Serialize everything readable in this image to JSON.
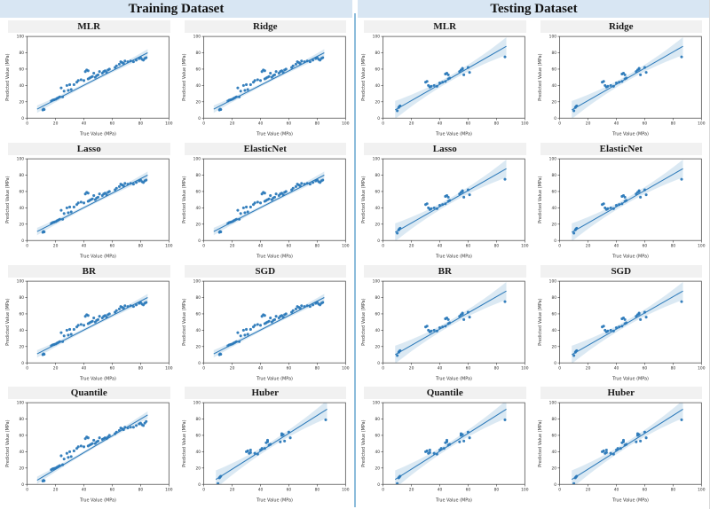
{
  "headers": {
    "training": "Training Dataset",
    "testing": "Testing Dataset"
  },
  "axes": {
    "xlabel": "True Value (MPa)",
    "ylabel": "Predicted Value (MPa)",
    "xlim": [
      0,
      100
    ],
    "ylim": [
      0,
      100
    ],
    "ticks": [
      0,
      20,
      40,
      60,
      80,
      100
    ]
  },
  "colors": {
    "accent": "#2b79b9",
    "band_fill": "#1f77b4",
    "header_bg": "#d8e6f3",
    "strip_bg": "#f1f1f1",
    "divider": "#8cbcdb",
    "plot_border": "#3f3f3f"
  },
  "chart_data": {
    "type": "scatter",
    "title": "Regression model predictions vs true values, training and testing datasets",
    "xlabel": "True Value (MPa)",
    "ylabel": "Predicted Value (MPa)",
    "xlim": [
      0,
      100
    ],
    "ylim": [
      0,
      100
    ],
    "grid": false,
    "legend": "none",
    "clouds": {
      "train_a": [
        [
          11,
          10
        ],
        [
          11.5,
          11
        ],
        [
          12,
          10.5
        ],
        [
          17,
          21
        ],
        [
          18,
          22
        ],
        [
          19,
          22.5
        ],
        [
          20,
          23
        ],
        [
          21,
          24
        ],
        [
          22,
          25
        ],
        [
          23,
          26
        ],
        [
          25,
          26
        ],
        [
          24,
          37
        ],
        [
          26,
          33
        ],
        [
          28,
          40
        ],
        [
          29,
          34
        ],
        [
          30,
          41
        ],
        [
          31,
          35
        ],
        [
          33,
          41
        ],
        [
          35,
          44
        ],
        [
          36,
          46
        ],
        [
          38,
          47
        ],
        [
          40,
          46
        ],
        [
          41,
          57
        ],
        [
          42,
          59
        ],
        [
          43,
          58
        ],
        [
          43,
          48
        ],
        [
          44,
          49
        ],
        [
          45,
          50
        ],
        [
          46,
          51
        ],
        [
          47,
          55
        ],
        [
          48,
          50
        ],
        [
          49,
          52
        ],
        [
          50,
          53
        ],
        [
          51,
          57
        ],
        [
          53,
          55
        ],
        [
          54,
          57
        ],
        [
          55,
          58
        ],
        [
          56,
          56
        ],
        [
          57,
          59
        ],
        [
          58,
          60
        ],
        [
          62,
          62
        ],
        [
          63,
          64
        ],
        [
          65,
          66
        ],
        [
          66,
          69
        ],
        [
          67,
          68
        ],
        [
          68,
          67
        ],
        [
          69,
          70
        ],
        [
          71,
          69
        ],
        [
          73,
          70
        ],
        [
          75,
          69
        ],
        [
          77,
          71
        ],
        [
          79,
          73
        ],
        [
          80,
          74
        ],
        [
          81,
          72
        ],
        [
          82,
          71
        ],
        [
          83,
          73
        ],
        [
          84,
          74
        ]
      ],
      "train_q": [
        [
          11,
          4
        ],
        [
          11.5,
          5
        ],
        [
          12,
          4.5
        ],
        [
          17,
          18
        ],
        [
          18,
          19
        ],
        [
          19,
          19.5
        ],
        [
          20,
          20
        ],
        [
          21,
          21
        ],
        [
          22,
          22
        ],
        [
          23,
          23
        ],
        [
          25,
          24
        ],
        [
          24,
          35
        ],
        [
          26,
          31
        ],
        [
          28,
          38
        ],
        [
          29,
          33
        ],
        [
          30,
          40
        ],
        [
          31,
          34
        ],
        [
          33,
          41
        ],
        [
          35,
          44
        ],
        [
          36,
          46
        ],
        [
          38,
          47
        ],
        [
          40,
          46
        ],
        [
          41,
          56
        ],
        [
          42,
          58
        ],
        [
          43,
          57
        ],
        [
          43,
          47
        ],
        [
          44,
          48
        ],
        [
          45,
          49
        ],
        [
          46,
          50
        ],
        [
          47,
          54
        ],
        [
          48,
          50
        ],
        [
          49,
          52
        ],
        [
          50,
          53
        ],
        [
          51,
          57
        ],
        [
          53,
          55
        ],
        [
          54,
          56
        ],
        [
          55,
          57
        ],
        [
          56,
          56
        ],
        [
          57,
          58
        ],
        [
          58,
          60
        ],
        [
          62,
          62
        ],
        [
          63,
          64
        ],
        [
          65,
          66
        ],
        [
          66,
          69
        ],
        [
          67,
          68
        ],
        [
          68,
          67
        ],
        [
          69,
          70
        ],
        [
          71,
          69
        ],
        [
          73,
          70
        ],
        [
          75,
          70
        ],
        [
          77,
          72
        ],
        [
          79,
          74
        ],
        [
          80,
          75
        ],
        [
          81,
          73
        ],
        [
          82,
          72
        ],
        [
          83,
          75
        ],
        [
          84,
          77
        ]
      ],
      "test_a": [
        [
          10,
          9
        ],
        [
          11,
          13
        ],
        [
          11.5,
          14
        ],
        [
          12,
          15
        ],
        [
          30,
          44
        ],
        [
          31,
          45
        ],
        [
          32,
          40
        ],
        [
          33,
          38
        ],
        [
          34,
          39
        ],
        [
          36,
          40
        ],
        [
          38,
          39
        ],
        [
          40,
          43
        ],
        [
          42,
          44
        ],
        [
          44,
          45
        ],
        [
          44,
          54
        ],
        [
          45,
          55
        ],
        [
          46,
          53
        ],
        [
          46,
          48
        ],
        [
          47,
          49
        ],
        [
          54,
          57
        ],
        [
          55,
          59
        ],
        [
          56,
          60
        ],
        [
          56,
          61
        ],
        [
          57,
          53
        ],
        [
          60,
          62
        ],
        [
          61,
          56
        ],
        [
          86,
          75
        ]
      ],
      "test_b": [
        [
          10,
          1
        ],
        [
          11,
          8
        ],
        [
          11.5,
          9
        ],
        [
          12,
          10
        ],
        [
          30,
          40
        ],
        [
          31,
          41
        ],
        [
          32,
          38
        ],
        [
          33,
          39
        ],
        [
          33,
          42
        ],
        [
          36,
          38
        ],
        [
          38,
          37
        ],
        [
          40,
          42
        ],
        [
          41,
          44
        ],
        [
          43,
          44
        ],
        [
          44,
          51
        ],
        [
          45,
          52
        ],
        [
          45,
          54
        ],
        [
          46,
          48
        ],
        [
          47,
          49
        ],
        [
          54,
          52
        ],
        [
          55,
          60
        ],
        [
          55,
          62
        ],
        [
          56,
          61
        ],
        [
          57,
          53
        ],
        [
          60,
          64
        ],
        [
          61,
          57
        ],
        [
          86,
          79
        ]
      ]
    },
    "lines": {
      "train_std": {
        "x0": 7,
        "y0": 11,
        "x1": 85,
        "y1": 80
      },
      "train_q": {
        "x0": 7,
        "y0": 5,
        "x1": 85,
        "y1": 85
      },
      "test_std": {
        "x0": 8.5,
        "y0": 10,
        "x1": 87,
        "y1": 88
      },
      "test_b": {
        "x0": 8.5,
        "y0": 6,
        "x1": 87,
        "y1": 92
      }
    },
    "bands": {
      "train": {
        "mid": 1.8,
        "end": 4.5
      },
      "test": {
        "mid": 3.5,
        "end": 11
      }
    },
    "panels": [
      {
        "dataset": "training",
        "title": "MLR",
        "cloud": "train_a",
        "line": "train_std",
        "band": "train"
      },
      {
        "dataset": "training",
        "title": "Ridge",
        "cloud": "train_a",
        "line": "train_std",
        "band": "train"
      },
      {
        "dataset": "training",
        "title": "Lasso",
        "cloud": "train_a",
        "line": "train_std",
        "band": "train"
      },
      {
        "dataset": "training",
        "title": "ElasticNet",
        "cloud": "train_a",
        "line": "train_std",
        "band": "train"
      },
      {
        "dataset": "training",
        "title": "BR",
        "cloud": "train_a",
        "line": "train_std",
        "band": "train"
      },
      {
        "dataset": "training",
        "title": "SGD",
        "cloud": "train_a",
        "line": "train_std",
        "band": "train"
      },
      {
        "dataset": "training",
        "title": "Quantile",
        "cloud": "train_q",
        "line": "train_q",
        "band": "train"
      },
      {
        "dataset": "training",
        "title": "Huber",
        "cloud": "test_b",
        "line": "test_b",
        "band": "test"
      },
      {
        "dataset": "testing",
        "title": "MLR",
        "cloud": "test_a",
        "line": "test_std",
        "band": "test"
      },
      {
        "dataset": "testing",
        "title": "Ridge",
        "cloud": "test_a",
        "line": "test_std",
        "band": "test"
      },
      {
        "dataset": "testing",
        "title": "Lasso",
        "cloud": "test_a",
        "line": "test_std",
        "band": "test"
      },
      {
        "dataset": "testing",
        "title": "ElasticNet",
        "cloud": "test_a",
        "line": "test_std",
        "band": "test"
      },
      {
        "dataset": "testing",
        "title": "BR",
        "cloud": "test_a",
        "line": "test_std",
        "band": "test"
      },
      {
        "dataset": "testing",
        "title": "SGD",
        "cloud": "test_a",
        "line": "test_std",
        "band": "test"
      },
      {
        "dataset": "testing",
        "title": "Quantile",
        "cloud": "test_b",
        "line": "test_b",
        "band": "test"
      },
      {
        "dataset": "testing",
        "title": "Huber",
        "cloud": "test_b",
        "line": "test_b",
        "band": "test"
      }
    ]
  }
}
